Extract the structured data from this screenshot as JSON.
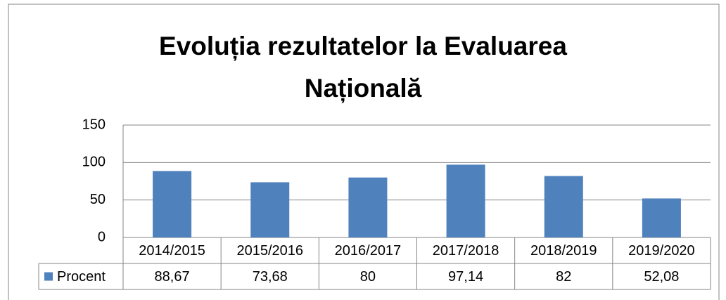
{
  "chart_data": {
    "type": "bar",
    "title": "Evoluția rezultatelor la Evaluarea Națională",
    "categories": [
      "2014/2015",
      "2015/2016",
      "2016/2017",
      "2017/2018",
      "2018/2019",
      "2019/2020"
    ],
    "series": [
      {
        "name": "Procent",
        "color": "#4f81bd",
        "values": [
          88.67,
          73.68,
          80,
          97.14,
          82,
          52.08
        ],
        "value_labels": [
          "88,67",
          "73,68",
          "80",
          "97,14",
          "82",
          "52,08"
        ]
      }
    ],
    "ylim": [
      0,
      150
    ],
    "yticks": [
      0,
      50,
      100,
      150
    ],
    "grid": true
  }
}
